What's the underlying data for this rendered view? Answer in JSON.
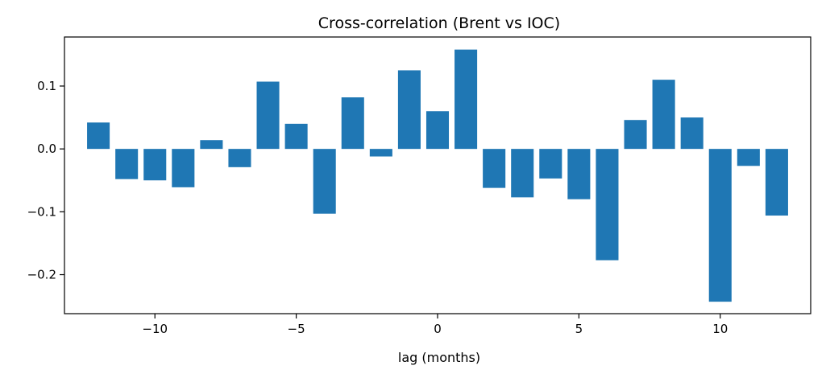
{
  "chart_data": {
    "type": "bar",
    "title": "Cross-correlation (Brent vs IOC)",
    "xlabel": "lag (months)",
    "ylabel": "",
    "bar_color": "#1f77b4",
    "x": [
      -12,
      -11,
      -10,
      -9,
      -8,
      -7,
      -6,
      -5,
      -4,
      -3,
      -2,
      -1,
      0,
      1,
      2,
      3,
      4,
      5,
      6,
      7,
      8,
      9,
      10,
      11,
      12
    ],
    "values": [
      0.042,
      -0.048,
      -0.05,
      -0.061,
      0.014,
      -0.029,
      0.107,
      0.04,
      -0.103,
      0.082,
      -0.012,
      0.125,
      0.06,
      0.158,
      -0.062,
      -0.077,
      -0.047,
      -0.08,
      -0.177,
      0.046,
      0.11,
      0.05,
      -0.243,
      -0.027,
      -0.106
    ],
    "xlim": [
      -13.2,
      13.2
    ],
    "ylim": [
      -0.262,
      0.178
    ],
    "xticks": [
      -10,
      -5,
      0,
      5,
      10
    ],
    "xtick_labels": [
      "−10",
      "−5",
      "0",
      "5",
      "10"
    ],
    "yticks": [
      0.1,
      0.0,
      -0.1,
      -0.2
    ],
    "ytick_labels": [
      "0.1",
      "0.0",
      "−0.1",
      "−0.2"
    ],
    "grid": false,
    "legend": "none"
  }
}
